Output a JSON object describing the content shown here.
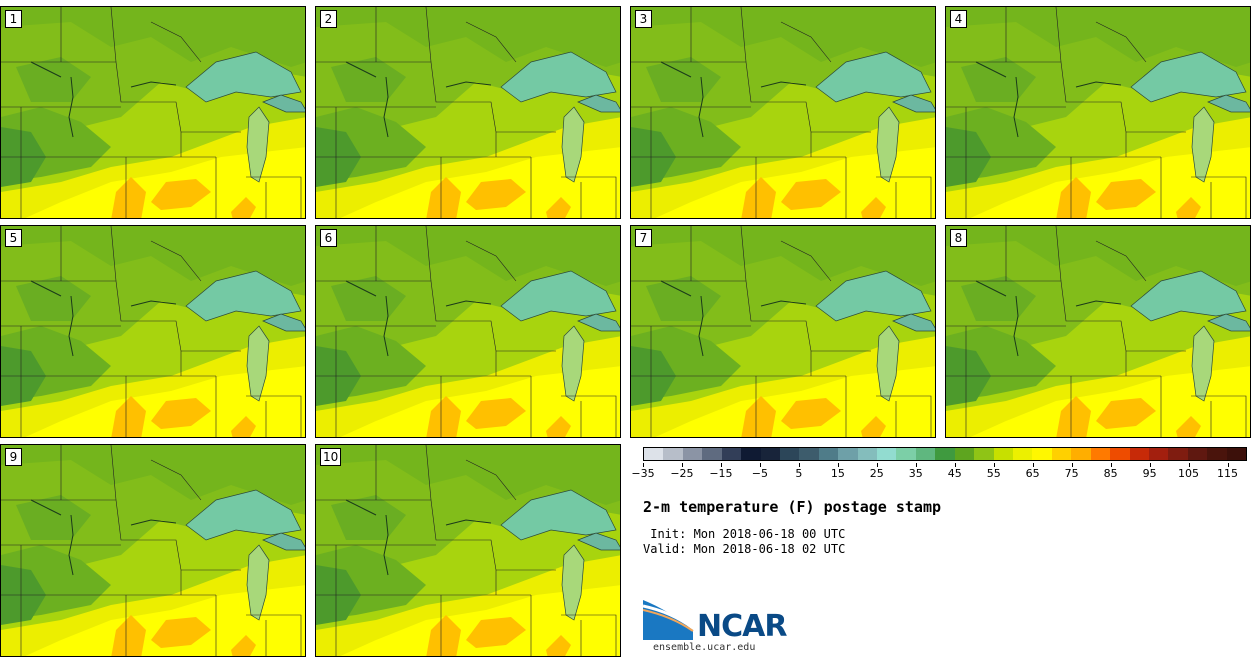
{
  "figure": {
    "title": "2-m temperature (F) postage stamp",
    "init": " Init: Mon 2018-06-18 00 UTC",
    "valid": "Valid: Mon 2018-06-18 02 UTC"
  },
  "panels": [
    {
      "label": "1"
    },
    {
      "label": "2"
    },
    {
      "label": "3"
    },
    {
      "label": "4"
    },
    {
      "label": "5"
    },
    {
      "label": "6"
    },
    {
      "label": "7"
    },
    {
      "label": "8"
    },
    {
      "label": "9"
    },
    {
      "label": "10"
    }
  ],
  "colorbar": {
    "min": -35,
    "max": 120,
    "step": 5,
    "tick_labels": [
      "−35",
      "−25",
      "−15",
      "−5",
      "5",
      "15",
      "25",
      "35",
      "45",
      "55",
      "65",
      "75",
      "85",
      "95",
      "105",
      "115"
    ],
    "colors": [
      "#dde2e9",
      "#b7bec9",
      "#8b94a5",
      "#5f6b80",
      "#323e58",
      "#0f1a33",
      "#18243a",
      "#2c4659",
      "#3d5c6c",
      "#4f7c89",
      "#6ea0a8",
      "#84bdbc",
      "#92dcd0",
      "#7ccfa7",
      "#5fb77f",
      "#3f9a3f",
      "#5ea51f",
      "#8fc416",
      "#c7e000",
      "#ecf000",
      "#fff700",
      "#ffd000",
      "#ffae00",
      "#ff7a00",
      "#ee4c00",
      "#c72a08",
      "#a31f0e",
      "#7f1c10",
      "#5f1810",
      "#4a140c",
      "#3c100a"
    ]
  },
  "colors": {
    "warm": "#ffff00",
    "orange": "#ffc000",
    "lightgreen": "#a6d20c",
    "green": "#74b51c",
    "darkgreen": "#4d9a2c",
    "lake": "#74c9a4"
  },
  "logo": {
    "name": "NCAR",
    "url": "ensemble.ucar.edu"
  }
}
